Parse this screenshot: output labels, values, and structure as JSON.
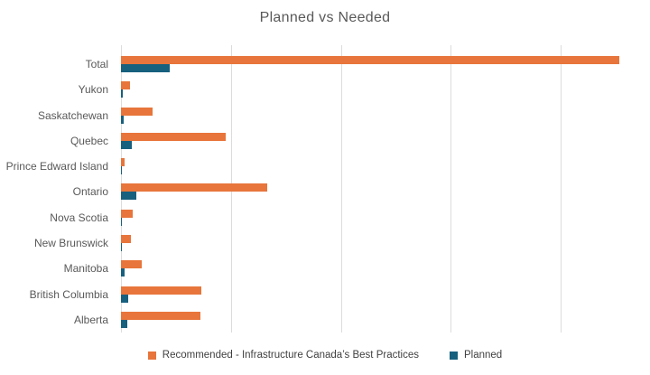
{
  "chart_data": {
    "type": "bar",
    "orientation": "horizontal",
    "title": "Planned vs Needed",
    "categories": [
      "Total",
      "Yukon",
      "Saskatchewan",
      "Quebec",
      "Prince Edward Island",
      "Ontario",
      "Nova Scotia",
      "New Brunswick",
      "Manitoba",
      "British Columbia",
      "Alberta"
    ],
    "series": [
      {
        "name": "Recommended - Infrastructure Canada’s Best Practices",
        "color": "#E8753B",
        "values": [
          4.53,
          0.08,
          0.29,
          0.95,
          0.035,
          1.33,
          0.11,
          0.09,
          0.19,
          0.73,
          0.72
        ]
      },
      {
        "name": "Planned",
        "color": "#17607E",
        "values": [
          0.44,
          0.014,
          0.025,
          0.095,
          0.011,
          0.14,
          0.012,
          0.011,
          0.029,
          0.063,
          0.055
        ]
      }
    ],
    "xlim": [
      0,
      4.81
    ],
    "gridlines": [
      0,
      1,
      2,
      3,
      4
    ],
    "x_tick_labels": [],
    "note": "x axis shows no numeric tick labels; values estimated in gridline units",
    "legend_position": "bottom",
    "grid": true
  },
  "colors": {
    "gridline": "#DCDCDC",
    "title_text": "#595959",
    "category_text": "#595959",
    "legend_text": "#404040"
  }
}
